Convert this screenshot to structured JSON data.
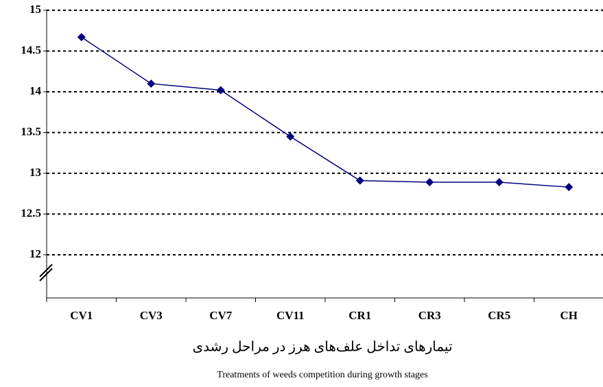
{
  "chart_data": {
    "type": "line",
    "x_label": "تیمارهای تداخل علف‌های هرز در مراحل رشدی",
    "x_label_en": "Treatments of weeds competition during growth stages",
    "categories": [
      "CV1",
      "CV3",
      "CV7",
      "CV11",
      "CR1",
      "CR3",
      "CR5",
      "CH"
    ],
    "series": [
      {
        "color": "#00007f",
        "values": [
          14.67,
          14.1,
          14.02,
          13.45,
          12.91,
          12.89,
          12.89,
          12.83
        ]
      }
    ],
    "ylim": [
      11.47,
      15
    ],
    "yticks": [
      {
        "value": 12,
        "label": "12"
      },
      {
        "value": 12.5,
        "label": "12.5"
      },
      {
        "value": 13,
        "label": "13"
      },
      {
        "value": 13.5,
        "label": "13.5"
      },
      {
        "value": 14,
        "label": "14"
      },
      {
        "value": 14.5,
        "label": "14.5"
      },
      {
        "value": 15,
        "label": "15"
      }
    ],
    "grid": true
  }
}
